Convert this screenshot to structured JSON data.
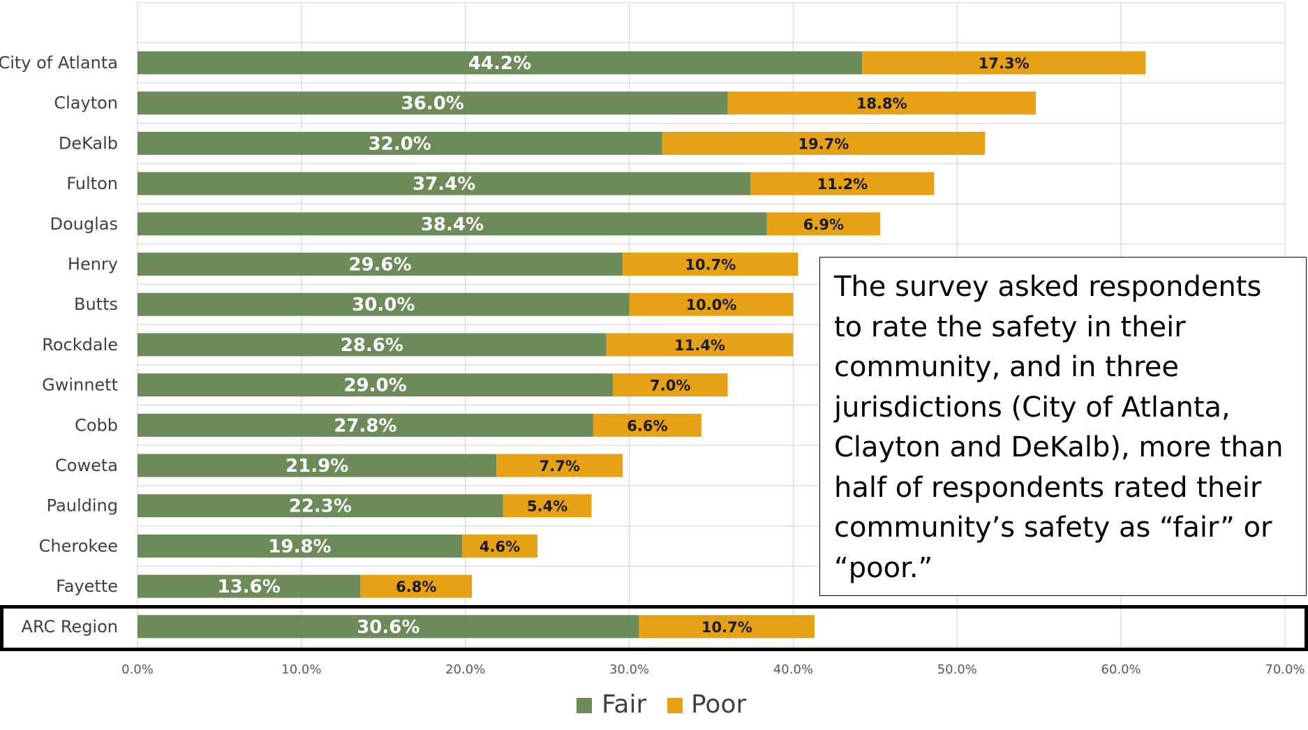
{
  "chart_data": {
    "type": "bar",
    "orientation": "horizontal",
    "stacked": true,
    "categories": [
      "City of Atlanta",
      "Clayton",
      "DeKalb",
      "Fulton",
      "Douglas",
      "Henry",
      "Butts",
      "Rockdale",
      "Gwinnett",
      "Cobb",
      "Coweta",
      "Paulding",
      "Cherokee",
      "Fayette",
      "ARC Region"
    ],
    "series": [
      {
        "name": "Fair",
        "color": "#6d8b58",
        "values": [
          44.2,
          36.0,
          32.0,
          37.4,
          38.4,
          29.6,
          30.0,
          28.6,
          29.0,
          27.8,
          21.9,
          22.3,
          19.8,
          13.6,
          30.6
        ],
        "labels": [
          "44.2%",
          "36.0%",
          "32.0%",
          "37.4%",
          "38.4%",
          "29.6%",
          "30.0%",
          "28.6%",
          "29.0%",
          "27.8%",
          "21.9%",
          "22.3%",
          "19.8%",
          "13.6%",
          "30.6%"
        ]
      },
      {
        "name": "Poor",
        "color": "#e6a117",
        "values": [
          17.3,
          18.8,
          19.7,
          11.2,
          6.9,
          10.7,
          10.0,
          11.4,
          7.0,
          6.6,
          7.7,
          5.4,
          4.6,
          6.8,
          10.7
        ],
        "labels": [
          "17.3%",
          "18.8%",
          "19.7%",
          "11.2%",
          "6.9%",
          "10.7%",
          "10.0%",
          "11.4%",
          "7.0%",
          "6.6%",
          "7.7%",
          "5.4%",
          "4.6%",
          "6.8%",
          "10.7%"
        ]
      }
    ],
    "xlim": [
      0,
      70
    ],
    "xticks": [
      "0.0%",
      "10.0%",
      "20.0%",
      "30.0%",
      "40.0%",
      "50.0%",
      "60.0%",
      "70.0%"
    ],
    "grid": true,
    "legend": "bottom",
    "highlighted_category": "ARC Region"
  },
  "annotation": {
    "text": "The survey asked respondents to rate the safety in their community, and in three jurisdictions (City of Atlanta, Clayton and DeKalb), more than half of respondents rated their community’s safety as “fair” or “poor.”"
  }
}
